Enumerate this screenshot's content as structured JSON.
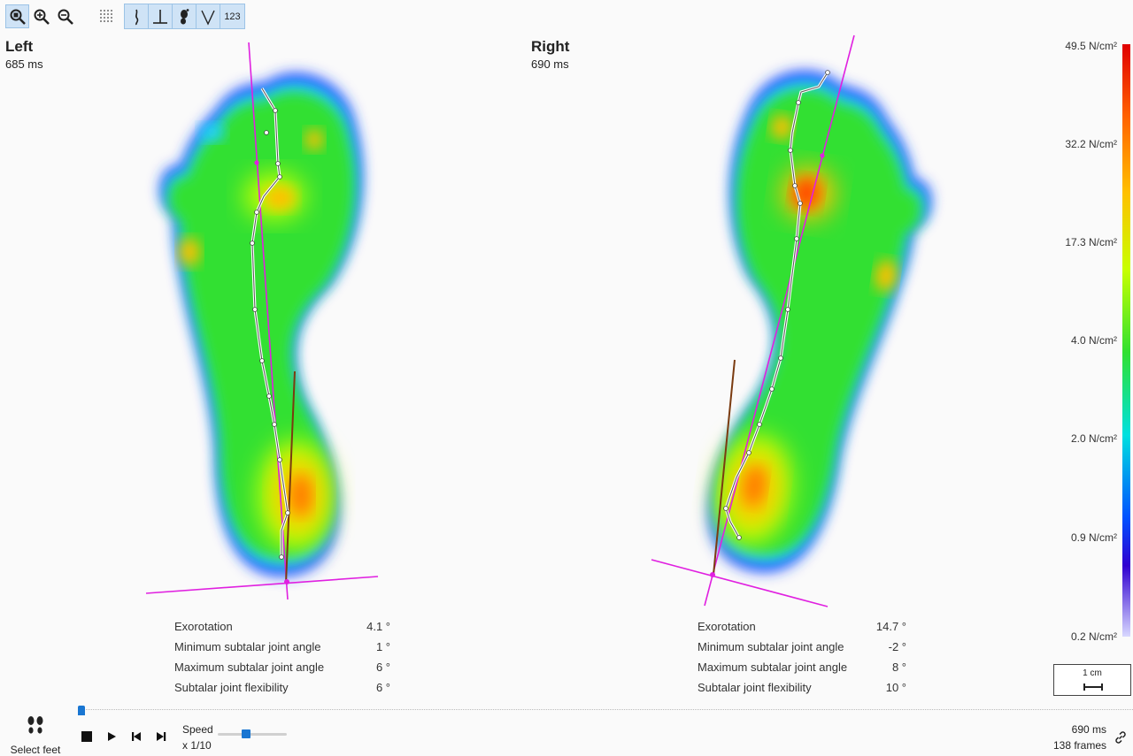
{
  "toolbar": {
    "buttons": [
      {
        "icon": "zoom-select-icon",
        "active": true
      },
      {
        "icon": "zoom-in-icon",
        "active": false
      },
      {
        "icon": "zoom-out-icon",
        "active": false
      },
      {
        "icon": "grid-dots-icon",
        "active": false
      },
      {
        "icon": "foot-line-icon",
        "active": true
      },
      {
        "icon": "perpendicular-icon",
        "active": true
      },
      {
        "icon": "foot-print-icon",
        "active": true
      },
      {
        "icon": "angle-icon",
        "active": true
      },
      {
        "icon": "numbers-icon",
        "active": true,
        "label": "123"
      }
    ]
  },
  "left": {
    "title": "Left",
    "time": "685 ms",
    "stats": [
      {
        "label": "Exorotation",
        "value": "4.1 °"
      },
      {
        "label": "Minimum subtalar joint angle",
        "value": "1 °"
      },
      {
        "label": "Maximum subtalar joint angle",
        "value": "6 °"
      },
      {
        "label": "Subtalar joint flexibility",
        "value": "6 °"
      }
    ]
  },
  "right": {
    "title": "Right",
    "time": "690 ms",
    "stats": [
      {
        "label": "Exorotation",
        "value": "14.7 °"
      },
      {
        "label": "Minimum subtalar joint angle",
        "value": "-2 °"
      },
      {
        "label": "Maximum subtalar joint angle",
        "value": "8 °"
      },
      {
        "label": "Subtalar joint flexibility",
        "value": "10 °"
      }
    ]
  },
  "legend": {
    "labels": [
      "49.5 N/cm²",
      "32.2 N/cm²",
      "17.3 N/cm²",
      "4.0 N/cm²",
      "2.0 N/cm²",
      "0.9 N/cm²",
      "0.2 N/cm²"
    ]
  },
  "scale": {
    "label": "1 cm"
  },
  "playback": {
    "select_feet_label": "Select feet",
    "speed_label": "Speed",
    "speed_value": "x 1/10",
    "speed_fraction": 0.4,
    "timeline_fraction": 0.0,
    "current_time": "690 ms",
    "frames": "138 frames"
  },
  "colors": {
    "accent": "#1976d2",
    "axis_line": "#e020e0",
    "heel_line": "#7a3b10",
    "cop_trace": "#ffffff"
  }
}
